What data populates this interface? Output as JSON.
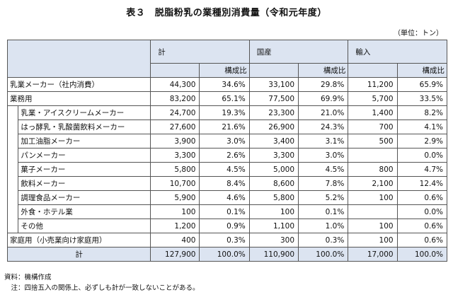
{
  "title": "表３　脱脂粉乳の業種別消費量（令和元年度）",
  "unit": "（単位：トン）",
  "headers": {
    "total": "計",
    "domestic": "国産",
    "imported": "輸入",
    "ratio": "構成比"
  },
  "rows": [
    {
      "label": "乳業メーカー（社内消費）",
      "total": "44,300",
      "total_ratio": "34.6%",
      "domestic": "33,100",
      "domestic_ratio": "29.8%",
      "imported": "11,200",
      "imported_ratio": "65.9%"
    },
    {
      "label": "業務用",
      "total": "83,200",
      "total_ratio": "65.1%",
      "domestic": "77,500",
      "domestic_ratio": "69.9%",
      "imported": "5,700",
      "imported_ratio": "33.5%"
    },
    {
      "label": "乳業・アイスクリームメーカー",
      "total": "24,700",
      "total_ratio": "19.3%",
      "domestic": "23,300",
      "domestic_ratio": "21.0%",
      "imported": "1,400",
      "imported_ratio": "8.2%"
    },
    {
      "label": "はっ酵乳・乳酸菌飲料メーカー",
      "total": "27,600",
      "total_ratio": "21.6%",
      "domestic": "26,900",
      "domestic_ratio": "24.3%",
      "imported": "700",
      "imported_ratio": "4.1%"
    },
    {
      "label": "加工油脂メーカー",
      "total": "3,900",
      "total_ratio": "3.0%",
      "domestic": "3,400",
      "domestic_ratio": "3.1%",
      "imported": "500",
      "imported_ratio": "2.9%"
    },
    {
      "label": "パンメーカー",
      "total": "3,300",
      "total_ratio": "2.6%",
      "domestic": "3,300",
      "domestic_ratio": "3.0%",
      "imported": "",
      "imported_ratio": "0.0%"
    },
    {
      "label": "菓子メーカー",
      "total": "5,800",
      "total_ratio": "4.5%",
      "domestic": "5,000",
      "domestic_ratio": "4.5%",
      "imported": "800",
      "imported_ratio": "4.7%"
    },
    {
      "label": "飲料メーカー",
      "total": "10,700",
      "total_ratio": "8.4%",
      "domestic": "8,600",
      "domestic_ratio": "7.8%",
      "imported": "2,100",
      "imported_ratio": "12.4%"
    },
    {
      "label": "調理食品メーカー",
      "total": "5,900",
      "total_ratio": "4.6%",
      "domestic": "5,800",
      "domestic_ratio": "5.2%",
      "imported": "100",
      "imported_ratio": "0.6%"
    },
    {
      "label": "外食・ホテル業",
      "total": "100",
      "total_ratio": "0.1%",
      "domestic": "100",
      "domestic_ratio": "0.1%",
      "imported": "",
      "imported_ratio": "0.0%"
    },
    {
      "label": "その他",
      "total": "1,200",
      "total_ratio": "0.9%",
      "domestic": "1,100",
      "domestic_ratio": "1.0%",
      "imported": "100",
      "imported_ratio": "0.6%"
    },
    {
      "label": "家庭用（小売業向け家庭用）",
      "total": "400",
      "total_ratio": "0.3%",
      "domestic": "300",
      "domestic_ratio": "0.3%",
      "imported": "100",
      "imported_ratio": "0.6%"
    }
  ],
  "total_row": {
    "label": "計",
    "total": "127,900",
    "total_ratio": "100.0%",
    "domestic": "110,900",
    "domestic_ratio": "100.0%",
    "imported": "17,000",
    "imported_ratio": "100.0%"
  },
  "notes": {
    "source": "資料：機構作成",
    "note": "　注：四捨五入の関係上、必ずしも計が一致しないことがある。"
  }
}
